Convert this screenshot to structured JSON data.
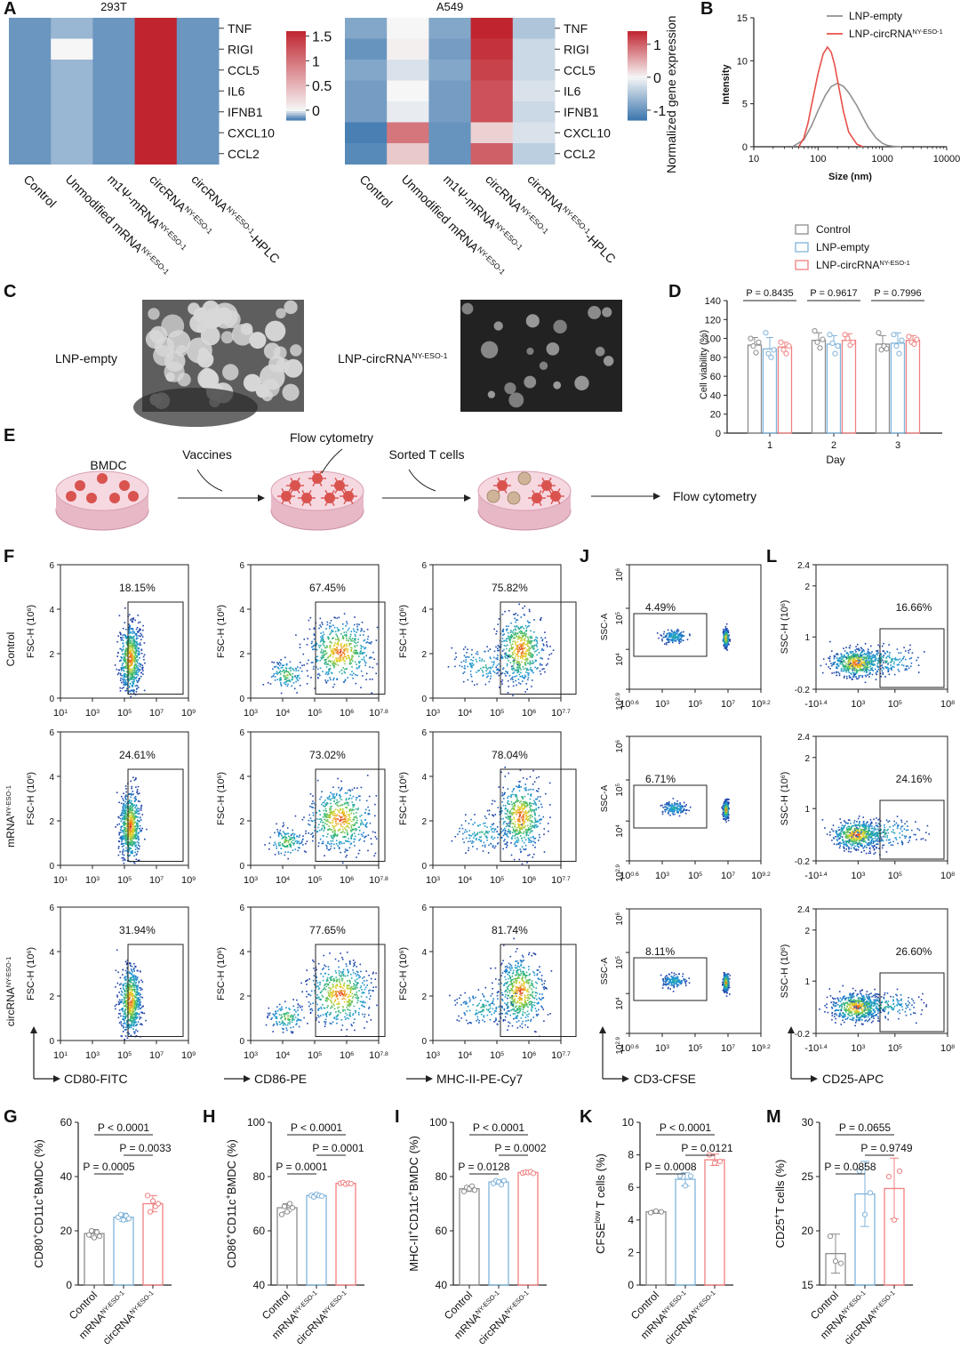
{
  "panel_letters": [
    "A",
    "B",
    "C",
    "D",
    "E",
    "F",
    "J",
    "L",
    "G",
    "H",
    "I",
    "K",
    "M"
  ],
  "panelA": {
    "subtitles": [
      "293T",
      "A549"
    ],
    "genes": [
      "TNF",
      "RIGI",
      "CCL5",
      "IL6",
      "IFNB1",
      "CXCL10",
      "CCL2"
    ],
    "conditions": [
      "Control",
      "Unmodified mRNA",
      "m1Ψ-mRNA",
      "circRNA",
      "circRNA"
    ],
    "condition_suffixes": [
      "",
      "-HPLC"
    ],
    "superscript": "NY-ESO-1",
    "cbar1_ticks": [
      "1.5",
      "1",
      "0.5",
      "0"
    ],
    "cbar2_ticks": [
      "1",
      "0",
      "-1"
    ],
    "cbar2_title": "Normalized gene expression",
    "colors": {
      "low": "#3b76ad",
      "mid": "#f6f6f6",
      "high": "#c0242f"
    }
  },
  "chart_data": [
    {
      "type": "heatmap",
      "panel": "A",
      "title": "293T",
      "rows": [
        "TNF",
        "RIGI",
        "CCL5",
        "IL6",
        "IFNB1",
        "CXCL10",
        "CCL2"
      ],
      "cols": [
        "Control",
        "Unmodified mRNA NY-ESO-1",
        "m1Ψ-mRNA NY-ESO-1",
        "circRNA NY-ESO-1",
        "circRNA NY-ESO-1-HPLC"
      ],
      "values": [
        [
          -0.15,
          -0.1,
          -0.15,
          1.6,
          -0.15
        ],
        [
          -0.15,
          0.0,
          -0.15,
          1.6,
          -0.15
        ],
        [
          -0.15,
          -0.1,
          -0.15,
          1.6,
          -0.15
        ],
        [
          -0.15,
          -0.1,
          -0.15,
          1.6,
          -0.15
        ],
        [
          -0.15,
          -0.1,
          -0.15,
          1.6,
          -0.15
        ],
        [
          -0.15,
          -0.1,
          -0.15,
          1.6,
          -0.15
        ],
        [
          -0.15,
          -0.1,
          -0.15,
          1.6,
          -0.15
        ]
      ],
      "colorbar_range": [
        -0.2,
        1.6
      ]
    },
    {
      "type": "heatmap",
      "panel": "A",
      "title": "A549",
      "rows": [
        "TNF",
        "RIGI",
        "CCL5",
        "IL6",
        "IFNB1",
        "CXCL10",
        "CCL2"
      ],
      "cols": [
        "Control",
        "Unmodified mRNA NY-ESO-1",
        "m1Ψ-mRNA NY-ESO-1",
        "circRNA NY-ESO-1",
        "circRNA NY-ESO-1-HPLC"
      ],
      "values": [
        [
          -0.8,
          0.0,
          -0.8,
          1.4,
          -0.5
        ],
        [
          -1.0,
          0.05,
          -0.9,
          1.3,
          -0.3
        ],
        [
          -0.8,
          -0.2,
          -0.8,
          1.2,
          -0.3
        ],
        [
          -0.9,
          0.0,
          -0.9,
          1.1,
          -0.2
        ],
        [
          -0.9,
          -0.1,
          -0.9,
          1.1,
          -0.3
        ],
        [
          -1.2,
          0.85,
          -1.0,
          0.25,
          -0.2
        ],
        [
          -1.1,
          0.3,
          -1.0,
          1.0,
          -0.4
        ]
      ],
      "colorbar_range": [
        -1.3,
        1.4
      ]
    },
    {
      "type": "line",
      "panel": "B",
      "xlabel": "Size (nm)",
      "ylabel": "Intensity",
      "xscale": "log",
      "xlim": [
        10,
        10000
      ],
      "ylim": [
        0,
        15
      ],
      "xticks": [
        "10",
        "100",
        "1000",
        "10000"
      ],
      "yticks": [
        "0",
        "5",
        "10",
        "15"
      ],
      "series": [
        {
          "name": "LNP-empty",
          "color": "#909090",
          "x": [
            40,
            60,
            80,
            100,
            130,
            160,
            200,
            250,
            300,
            400,
            500,
            600,
            800,
            1000,
            1200,
            1500,
            2000
          ],
          "y": [
            0,
            0.8,
            2.5,
            4.2,
            6.0,
            7.0,
            7.4,
            7.0,
            6.3,
            4.8,
            3.4,
            2.3,
            1.0,
            0.4,
            0.15,
            0.05,
            0
          ]
        },
        {
          "name": "LNP-circRNA",
          "color": "#e8504a",
          "x": [
            50,
            60,
            70,
            80,
            100,
            120,
            140,
            160,
            180,
            200,
            250,
            300,
            400,
            500
          ],
          "y": [
            0,
            1.0,
            2.8,
            5.0,
            8.5,
            10.8,
            11.6,
            11.0,
            9.6,
            7.8,
            4.0,
            1.7,
            0.3,
            0
          ]
        }
      ]
    },
    {
      "type": "bar",
      "panel": "D",
      "xlabel": "Day",
      "ylabel": "Cell viability (%)",
      "categories": [
        "1",
        "2",
        "3"
      ],
      "ylim": [
        0,
        140
      ],
      "yticks": [
        "0",
        "20",
        "40",
        "60",
        "80",
        "100",
        "120",
        "140"
      ],
      "pvalues": [
        "P = 0.8435",
        "P = 0.9617",
        "P = 0.7996"
      ],
      "series": [
        {
          "name": "Control",
          "color": "#8c8c8c",
          "values": [
            93,
            98,
            94
          ],
          "err": [
            8,
            8,
            9
          ],
          "points": [
            [
              100,
              92,
              85,
              96
            ],
            [
              108,
              96,
              90,
              99
            ],
            [
              106,
              88,
              92,
              89
            ]
          ]
        },
        {
          "name": "LNP-empty",
          "color": "#7fb3da",
          "values": [
            89,
            94,
            95
          ],
          "err": [
            12,
            9,
            11
          ],
          "points": [
            [
              106,
              84,
              80,
              88
            ],
            [
              104,
              95,
              84,
              92
            ],
            [
              104,
              92,
              84,
              98
            ]
          ]
        },
        {
          "name": "LNP-circRNA",
          "color": "#f08080",
          "values": [
            91,
            98,
            98
          ],
          "err": [
            5,
            7,
            5
          ],
          "points": [
            [
              96,
              88,
              84,
              92
            ],
            [
              104,
              100,
              93,
              96
            ],
            [
              102,
              96,
              94,
              99
            ]
          ]
        }
      ]
    },
    {
      "type": "bar",
      "panel": "G",
      "ylabel": "CD80+CD11c+BMDC (%)",
      "ylim": [
        0,
        60
      ],
      "yticks": [
        "0",
        "20",
        "40",
        "60"
      ],
      "categories": [
        "Control",
        "mRNA NY-ESO-1",
        "circRNA NY-ESO-1"
      ],
      "values": [
        19,
        25,
        30
      ],
      "err": [
        1.5,
        1.5,
        3
      ],
      "points": [
        [
          18.5,
          20,
          17.5,
          19.5,
          18
        ],
        [
          25,
          26,
          24,
          25.5,
          24.5
        ],
        [
          33,
          27,
          31,
          29,
          30
        ]
      ],
      "comparisons": [
        {
          "a": 0,
          "b": 1,
          "label": "P = 0.0005"
        },
        {
          "a": 1,
          "b": 2,
          "label": "P = 0.0033"
        },
        {
          "a": 0,
          "b": 2,
          "label": "P < 0.0001"
        }
      ]
    },
    {
      "type": "bar",
      "panel": "H",
      "ylabel": "CD86+CD11c+BMDC (%)",
      "ylim": [
        40,
        100
      ],
      "yticks": [
        "40",
        "60",
        "80",
        "100"
      ],
      "categories": [
        "Control",
        "mRNA NY-ESO-1",
        "circRNA NY-ESO-1"
      ],
      "values": [
        68.5,
        73,
        77.5
      ],
      "err": [
        1.5,
        0.7,
        0.5
      ],
      "points": [
        [
          66,
          69,
          67,
          70,
          68.5
        ],
        [
          73,
          72.5,
          73.5,
          73,
          72.8
        ],
        [
          77.5,
          77.8,
          77.2,
          77.6,
          77.4
        ]
      ],
      "comparisons": [
        {
          "a": 0,
          "b": 1,
          "label": "P = 0.0001"
        },
        {
          "a": 1,
          "b": 2,
          "label": "P = 0.0001"
        },
        {
          "a": 0,
          "b": 2,
          "label": "P < 0.0001"
        }
      ]
    },
    {
      "type": "bar",
      "panel": "I",
      "ylabel": "MHC-II+CD11c+BMDC (%)",
      "ylim": [
        40,
        100
      ],
      "yticks": [
        "40",
        "60",
        "80",
        "100"
      ],
      "categories": [
        "Control",
        "mRNA NY-ESO-1",
        "circRNA NY-ESO-1"
      ],
      "values": [
        75.5,
        78,
        81.5
      ],
      "err": [
        1,
        0.8,
        0.3
      ],
      "points": [
        [
          74.5,
          76,
          75.5,
          76.5,
          75
        ],
        [
          77.5,
          78.5,
          78,
          77,
          78.5
        ],
        [
          81.3,
          81.6,
          81.5,
          81.8,
          81.2
        ]
      ],
      "comparisons": [
        {
          "a": 0,
          "b": 1,
          "label": "P = 0.0128"
        },
        {
          "a": 1,
          "b": 2,
          "label": "P = 0.0002"
        },
        {
          "a": 0,
          "b": 2,
          "label": "P < 0.0001"
        }
      ]
    },
    {
      "type": "bar",
      "panel": "K",
      "ylabel": "CFSElow T cells (%)",
      "ylim": [
        0,
        10
      ],
      "yticks": [
        "0",
        "2",
        "4",
        "6",
        "8",
        "10"
      ],
      "categories": [
        "Control",
        "mRNA NY-ESO-1",
        "circRNA NY-ESO-1"
      ],
      "values": [
        4.5,
        6.5,
        7.7
      ],
      "err": [
        0.1,
        0.4,
        0.35
      ],
      "points": [
        [
          4.45,
          4.55,
          4.5
        ],
        [
          6.7,
          6.1,
          6.7
        ],
        [
          8.0,
          7.5,
          7.6
        ]
      ],
      "comparisons": [
        {
          "a": 0,
          "b": 1,
          "label": "P = 0.0008"
        },
        {
          "a": 1,
          "b": 2,
          "label": "P = 0.0121"
        },
        {
          "a": 0,
          "b": 2,
          "label": "P < 0.0001"
        }
      ]
    },
    {
      "type": "bar",
      "panel": "M",
      "ylabel": "CD25+T cells (%)",
      "ylim": [
        15,
        30
      ],
      "yticks": [
        "15",
        "20",
        "25",
        "30"
      ],
      "categories": [
        "Control",
        "mRNA NY-ESO-1",
        "circRNA NY-ESO-1"
      ],
      "values": [
        17.9,
        23.4,
        23.9
      ],
      "err": [
        1.8,
        3,
        2.8
      ],
      "points": [
        [
          19.5,
          17.2,
          17
        ],
        [
          25.5,
          21.5,
          23.5
        ],
        [
          25,
          21,
          25.5
        ]
      ],
      "comparisons": [
        {
          "a": 0,
          "b": 1,
          "label": "P = 0.0858"
        },
        {
          "a": 1,
          "b": 2,
          "label": "P = 0.9749"
        },
        {
          "a": 0,
          "b": 2,
          "label": "P = 0.0655"
        }
      ]
    }
  ],
  "panelB": {
    "legend": [
      "LNP-empty",
      "LNP-circRNA"
    ],
    "legend_sup": [
      "",
      "NY-ESO-1"
    ]
  },
  "panelC": {
    "labels": [
      "LNP-empty",
      "LNP-circRNA"
    ],
    "label_sup": [
      "",
      "NY-ESO-1"
    ]
  },
  "panelD": {
    "legend": [
      "Control",
      "LNP-empty",
      "LNP-circRNA"
    ],
    "legend_sup": [
      "",
      "",
      "NY-ESO-1"
    ]
  },
  "panelE": {
    "labels": [
      "BMDC",
      "Vaccines",
      "Flow cytometry",
      "Sorted T cells",
      "Flow cytometry"
    ]
  },
  "panelF": {
    "row_labels": [
      "Control",
      "mRNA",
      "circRNA"
    ],
    "row_sup": [
      "",
      "NY-ESO-1",
      "NY-ESO-1"
    ],
    "ylabel": "FSC-H (10",
    "ylabel_sup": "6",
    "ylabel_end": ")",
    "xlabels": [
      "CD80-FITC",
      "CD86-PE",
      "MHC-II-PE-Cy7"
    ],
    "percents": [
      [
        "18.15%",
        "67.45%",
        "75.82%"
      ],
      [
        "24.61%",
        "73.02%",
        "78.04%"
      ],
      [
        "31.94%",
        "77.65%",
        "81.74%"
      ]
    ],
    "yticks": [
      "0",
      "2",
      "4",
      "6"
    ],
    "xticks_base": [
      "10",
      "10",
      "10",
      "10",
      "10",
      "10",
      "10"
    ],
    "xticks_exp": [
      [
        "1",
        "3",
        "5",
        "7",
        "9"
      ],
      [
        "3",
        "4",
        "5",
        "6",
        "7.8"
      ],
      [
        "3",
        "4",
        "5",
        "6",
        "7.7"
      ]
    ]
  },
  "panelJ": {
    "ylabel": "SSC-A",
    "xlabel": "CD3-CFSE",
    "percents": [
      "4.49%",
      "6.71%",
      "8.11%"
    ],
    "xticks_exp": [
      "0.6",
      "3",
      "5",
      "7",
      "9.2"
    ],
    "yticks_exp": [
      "6",
      "5",
      "4",
      "2.9"
    ],
    "base": "10"
  },
  "panelL": {
    "ylabel": "SSC-H (10",
    "ylabel_sup": "6",
    "ylabel_end": ")",
    "xlabel": "CD25-APC",
    "percents": [
      "16.66%",
      "24.16%",
      "26.60%"
    ],
    "yticks": [
      "2.4",
      "2",
      "1",
      "-0.2"
    ],
    "xticks_pre": [
      "-10"
    ],
    "xticks_exp": [
      "1.4",
      "3",
      "5",
      "8"
    ],
    "base": "10"
  },
  "bar_xlabels": [
    "Control",
    "mRNA",
    "circRNA"
  ],
  "bar_xsup": [
    "",
    "NY-ESO-1",
    "NY-ESO-1"
  ],
  "bar_colors": [
    "#8c8c8c",
    "#7fb3da",
    "#f08080"
  ]
}
